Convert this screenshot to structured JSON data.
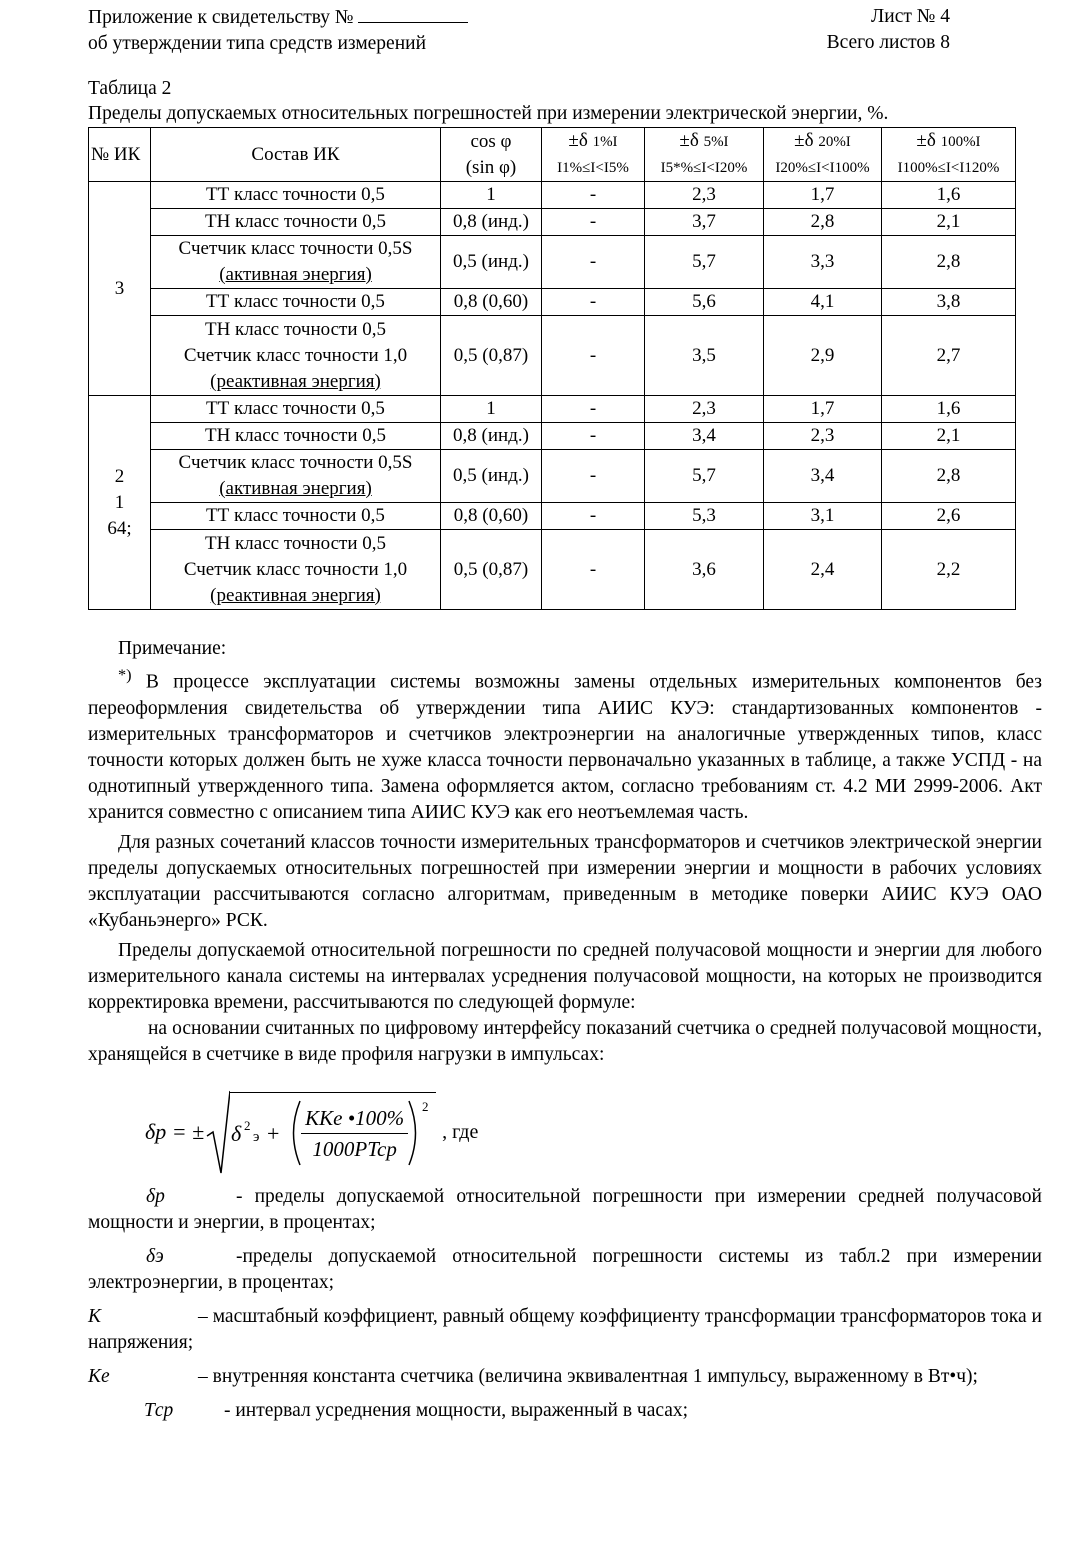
{
  "header": {
    "left_line1": "Приложение к свидетельству №",
    "left_line2": "об утверждении типа средств измерений",
    "right_line1": "Лист № 4",
    "right_line2": "Всего листов 8"
  },
  "table": {
    "label": "Таблица 2",
    "caption": "Пределы допускаемых относительных погрешностей при измерении электрической энергии, %.",
    "headers": {
      "num": "№ ИК",
      "composition": "Состав ИК",
      "cos": "cos φ",
      "sin": "(sin φ)",
      "d1": "±δ",
      "d1_sub": "1%I",
      "r1": "I1%≤I<I5%",
      "d5": "±δ",
      "d5_sub": "5%I",
      "r5": "I5*%≤I<I20%",
      "d20": "±δ",
      "d20_sub": "20%I",
      "r20": "I20%≤I<I100%",
      "d100": "±δ",
      "d100_sub": "100%I",
      "r100": "I100%≤I<I120%"
    },
    "groups": [
      {
        "ik": [
          "3"
        ],
        "rows": [
          {
            "comp": [
              "ТТ класс точности 0,5"
            ],
            "cos": "1",
            "v1": "-",
            "v5": "2,3",
            "v20": "1,7",
            "v100": "1,6"
          },
          {
            "comp": [
              "ТН класс точности 0,5"
            ],
            "cos": "0,8 (инд.)",
            "v1": "-",
            "v5": "3,7",
            "v20": "2,8",
            "v100": "2,1"
          },
          {
            "comp": [
              "Счетчик класс точности 0,5S",
              "(активная энергия)"
            ],
            "cos": "0,5 (инд.)",
            "v1": "-",
            "v5": "5,7",
            "v20": "3,3",
            "v100": "2,8"
          },
          {
            "comp": [
              "ТТ класс точности 0,5"
            ],
            "cos": "0,8 (0,60)",
            "v1": "-",
            "v5": "5,6",
            "v20": "4,1",
            "v100": "3,8"
          },
          {
            "comp": [
              "ТН класс точности 0,5",
              "Счетчик класс точности 1,0",
              "(реактивная энергия)"
            ],
            "cos": "0,5 (0,87)",
            "v1": "-",
            "v5": "3,5",
            "v20": "2,9",
            "v100": "2,7"
          }
        ]
      },
      {
        "ik": [
          "2",
          "1",
          "64;"
        ],
        "rows": [
          {
            "comp": [
              "ТТ класс точности 0,5"
            ],
            "cos": "1",
            "v1": "-",
            "v5": "2,3",
            "v20": "1,7",
            "v100": "1,6"
          },
          {
            "comp": [
              "ТН класс точности 0,5"
            ],
            "cos": "0,8 (инд.)",
            "v1": "-",
            "v5": "3,4",
            "v20": "2,3",
            "v100": "2,1"
          },
          {
            "comp": [
              "Счетчик класс точности 0,5S",
              "(активная энергия)"
            ],
            "cos": "0,5 (инд.)",
            "v1": "-",
            "v5": "5,7",
            "v20": "3,4",
            "v100": "2,8"
          },
          {
            "comp": [
              "ТТ класс точности 0,5"
            ],
            "cos": "0,8 (0,60)",
            "v1": "-",
            "v5": "5,3",
            "v20": "3,1",
            "v100": "2,6"
          },
          {
            "comp": [
              "ТН класс точности 0,5",
              "Счетчик класс точности 1,0",
              "(реактивная энергия)"
            ],
            "cos": "0,5 (0,87)",
            "v1": "-",
            "v5": "3,6",
            "v20": "2,4",
            "v100": "2,2"
          }
        ]
      }
    ]
  },
  "note": {
    "title": "Примечание:",
    "star": "*)",
    "p1": "В процессе эксплуатации системы возможны замены отдельных измерительных компонентов без переоформления свидетельства об утверждении типа АИИС КУЭ: стандартизованных компонентов - измерительных трансформаторов и счетчиков электроэнергии на аналогичные утвержденных типов, класс точности которых должен быть не хуже класса точности первоначально указанных в таблице, а также УСПД - на однотипный утвержденного типа. Замена оформляется актом, согласно требованиям ст. 4.2 МИ 2999-2006. Акт хранится совместно с описанием типа АИИС КУЭ как его неотъемлемая часть.",
    "p2": "Для разных сочетаний классов точности измерительных трансформаторов и счетчиков электрической энергии пределы допускаемых относительных погрешностей при измерении энергии и мощности в рабочих условиях эксплуатации рассчитываются согласно алгоритмам, приведенным в методике поверки АИИС КУЭ ОАО «Кубаньэнерго» РСК.",
    "p3": "Пределы допускаемой относительной погрешности по средней получасовой мощности и энергии для любого измерительного канала системы на интервалах усреднения получасовой мощности, на которых не производится корректировка времени, рассчитываются по следующей формуле:",
    "p4": "на основании считанных по цифровому интерфейсу показаний счетчика о средней получасовой мощности, хранящейся в счетчике в виде профиля нагрузки в импульсах:"
  },
  "formula": {
    "lhs": "δp = ±",
    "numerator": "KKe •100%",
    "denominator": "1000PTcp",
    "suffix": ", где"
  },
  "definitions": [
    {
      "sym": "δp",
      "text": "- пределы допускаемой относительной погрешности при измерении средней получасовой мощности и энергии, в процентах;"
    },
    {
      "sym": "δэ",
      "text": "-пределы допускаемой относительной погрешности системы  из табл.2 при измерении электроэнергии, в процентах;"
    },
    {
      "sym": "К",
      "text": "– масштабный коэффициент, равный общему коэффициенту трансформации  трансформаторов тока и напряжения;"
    },
    {
      "sym": "Ke",
      "text": "– внутренняя константа счетчика (величина эквивалентная 1 импульсу, выраженному в Вт•ч);"
    },
    {
      "sym": "Tср",
      "text": "- интервал усреднения мощности, выраженный в часах;"
    }
  ]
}
